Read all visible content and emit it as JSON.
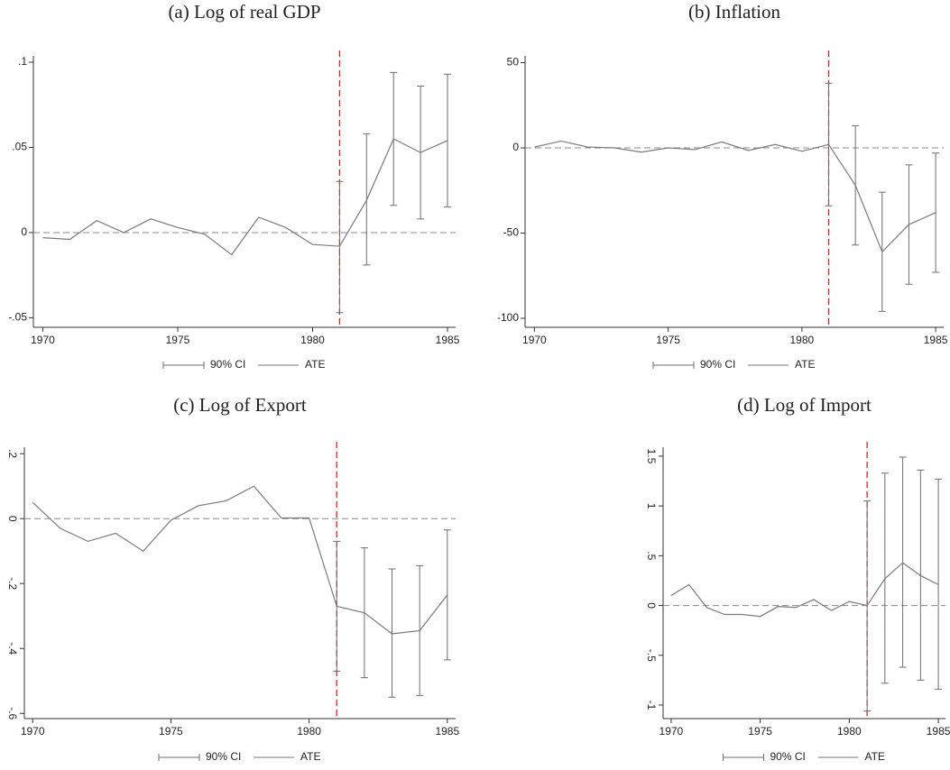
{
  "chart_data": [
    {
      "type": "line",
      "title": "(a) Log of real GDP",
      "x": [
        1970,
        1971,
        1972,
        1973,
        1974,
        1975,
        1976,
        1977,
        1978,
        1979,
        1980,
        1981,
        1982,
        1983,
        1984,
        1985
      ],
      "series": [
        {
          "name": "90% CI",
          "type": "errorbar",
          "color": "#6e6e6e",
          "lower": [
            null,
            null,
            null,
            null,
            null,
            null,
            null,
            null,
            null,
            null,
            null,
            -0.047,
            -0.019,
            0.016,
            0.008,
            0.015
          ],
          "upper": [
            null,
            null,
            null,
            null,
            null,
            null,
            null,
            null,
            null,
            null,
            null,
            0.03,
            0.058,
            0.094,
            0.086,
            0.093
          ]
        },
        {
          "name": "ATE",
          "type": "line",
          "color": "#7a7a7a",
          "values": [
            -0.003,
            -0.004,
            0.007,
            0,
            0.008,
            0.003,
            -0.001,
            -0.013,
            0.009,
            0.003,
            -0.007,
            -0.008,
            0.019,
            0.055,
            0.047,
            0.054
          ]
        }
      ],
      "xlim": [
        1969.65,
        1985.3
      ],
      "xticks": [
        1970,
        1975,
        1980,
        1985
      ],
      "ylim": [
        -0.0556,
        0.1037
      ],
      "yticks": [
        {
          "value": -0.05,
          "label": "-.05"
        },
        0,
        {
          "value": 0.05,
          "label": ".05"
        },
        {
          "value": 0.1,
          "label": ".1"
        }
      ],
      "hline": 0,
      "vline": 1981,
      "vline_color": "#d62728"
    },
    {
      "type": "line",
      "title": "(b) Inflation",
      "x": [
        1970,
        1971,
        1972,
        1973,
        1974,
        1975,
        1976,
        1977,
        1978,
        1979,
        1980,
        1981,
        1982,
        1983,
        1984,
        1985
      ],
      "series": [
        {
          "name": "90% CI",
          "type": "errorbar",
          "color": "#6e6e6e",
          "lower": [
            null,
            null,
            null,
            null,
            null,
            null,
            null,
            null,
            null,
            null,
            null,
            -34,
            -57,
            -96,
            -80,
            -73
          ],
          "upper": [
            null,
            null,
            null,
            null,
            null,
            null,
            null,
            null,
            null,
            null,
            null,
            38,
            13,
            -26,
            -10,
            -3
          ]
        },
        {
          "name": "ATE",
          "type": "line",
          "color": "#7a7a7a",
          "values": [
            0.5,
            4,
            0.5,
            0,
            -2.5,
            0,
            -1,
            3.5,
            -1.5,
            2,
            -2,
            2,
            -22,
            -61,
            -45,
            -38
          ]
        }
      ],
      "xlim": [
        1969.65,
        1985.3
      ],
      "xticks": [
        1970,
        1975,
        1980,
        1985
      ],
      "ylim": [
        -105.3,
        54
      ],
      "yticks": [
        -100,
        -50,
        0,
        50
      ],
      "hline": 0,
      "vline": 1981,
      "vline_color": "#d62728"
    },
    {
      "type": "line",
      "title": "(c) Log of Export",
      "x": [
        1970,
        1971,
        1972,
        1973,
        1974,
        1975,
        1976,
        1977,
        1978,
        1979,
        1980,
        1981,
        1982,
        1983,
        1984,
        1985
      ],
      "series": [
        {
          "name": "90% CI",
          "type": "errorbar",
          "color": "#6e6e6e",
          "lower": [
            null,
            null,
            null,
            null,
            null,
            null,
            null,
            null,
            null,
            null,
            null,
            -0.47,
            -0.49,
            -0.55,
            -0.545,
            -0.435
          ],
          "upper": [
            null,
            null,
            null,
            null,
            null,
            null,
            null,
            null,
            null,
            null,
            null,
            -0.07,
            -0.09,
            -0.155,
            -0.145,
            -0.035
          ]
        },
        {
          "name": "ATE",
          "type": "line",
          "color": "#7a7a7a",
          "values": [
            0.05,
            -0.03,
            -0.07,
            -0.045,
            -0.1,
            -0.005,
            0.04,
            0.055,
            0.1,
            0.002,
            0.002,
            -0.27,
            -0.29,
            -0.355,
            -0.345,
            -0.235
          ]
        }
      ],
      "xlim": [
        1969.7,
        1985.3
      ],
      "xticks": [
        1970,
        1975,
        1980,
        1985
      ],
      "ylim": [
        -0.616,
        0.22
      ],
      "yticks": [
        {
          "value": -0.6,
          "label": "-.6"
        },
        {
          "value": -0.4,
          "label": "-.4"
        },
        {
          "value": -0.2,
          "label": "-.2"
        },
        0,
        {
          "value": 0.2,
          "label": ".2"
        }
      ],
      "hline": 0,
      "vline": 1981,
      "vline_color": "#d62728"
    },
    {
      "type": "line",
      "title": "(d) Log of Import",
      "x": [
        1970,
        1971,
        1972,
        1973,
        1974,
        1975,
        1976,
        1977,
        1978,
        1979,
        1980,
        1981,
        1982,
        1983,
        1984,
        1985
      ],
      "series": [
        {
          "name": "90% CI",
          "type": "errorbar",
          "color": "#6e6e6e",
          "lower": [
            null,
            null,
            null,
            null,
            null,
            null,
            null,
            null,
            null,
            null,
            null,
            -1.06,
            -0.78,
            -0.62,
            -0.75,
            -0.84
          ],
          "upper": [
            null,
            null,
            null,
            null,
            null,
            null,
            null,
            null,
            null,
            null,
            null,
            1.05,
            1.33,
            1.49,
            1.36,
            1.27
          ]
        },
        {
          "name": "ATE",
          "type": "line",
          "color": "#7a7a7a",
          "values": [
            0.1,
            0.21,
            -0.02,
            -0.09,
            -0.09,
            -0.11,
            -0.01,
            -0.02,
            0.06,
            -0.05,
            0.04,
            0,
            0.27,
            0.43,
            0.3,
            0.21
          ]
        }
      ],
      "xlim": [
        1969.55,
        1985.4
      ],
      "xticks": [
        1970,
        1975,
        1980,
        1985
      ],
      "ylim": [
        -1.136,
        1.59
      ],
      "yticks": [
        -1,
        {
          "value": -0.5,
          "label": "-.5"
        },
        0,
        {
          "value": 0.5,
          "label": ".5"
        },
        1,
        1.5
      ],
      "hline": 0,
      "vline": 1981,
      "vline_color": "#d62728"
    }
  ]
}
